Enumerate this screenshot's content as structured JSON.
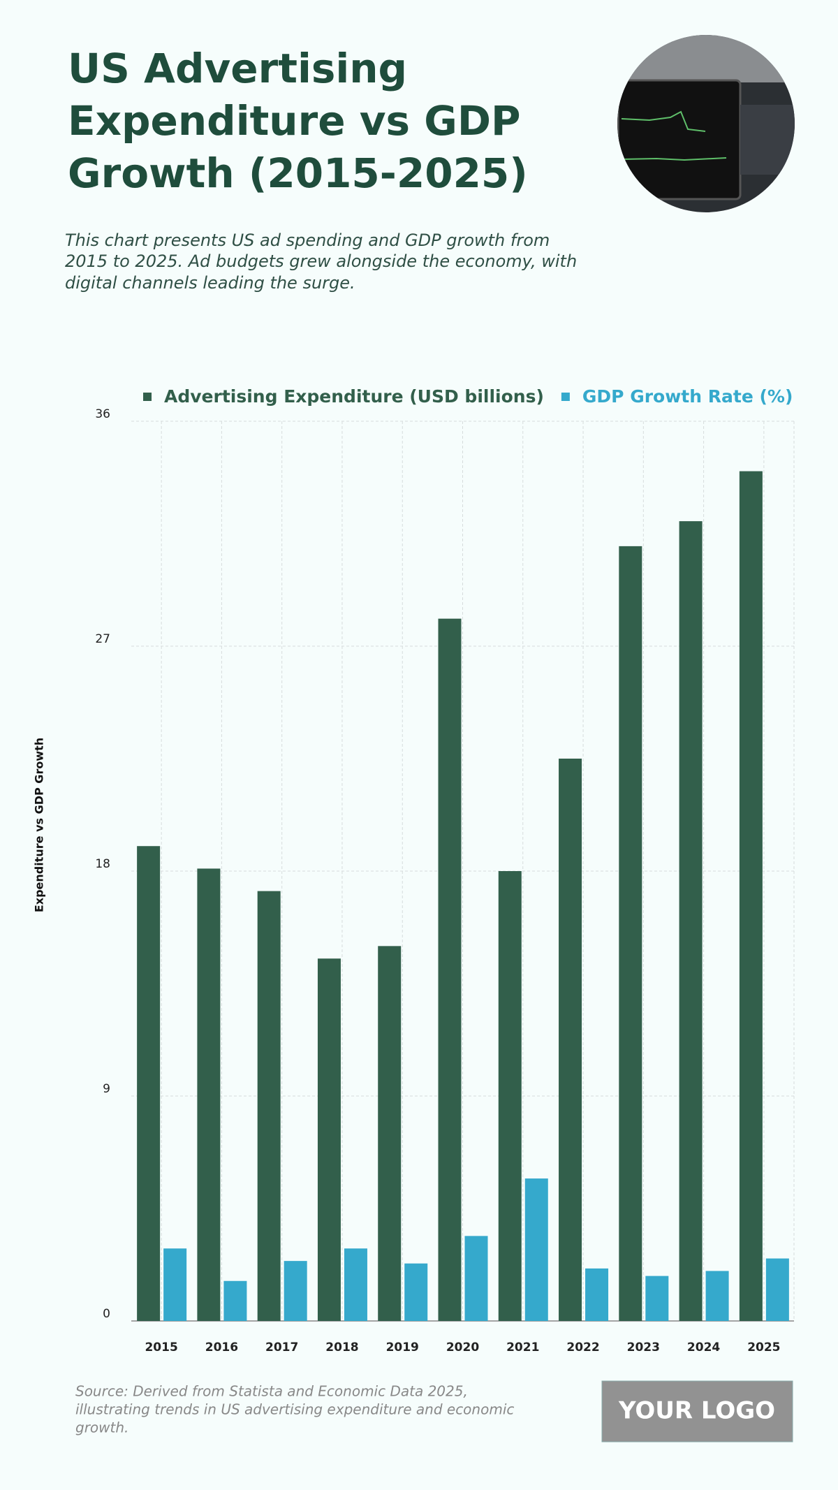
{
  "header": {
    "title": [
      "US Advertising",
      "Expenditure vs GDP",
      "Growth (2015-2025)"
    ],
    "subtitle": [
      "This chart presents US ad spending and GDP growth from",
      "2015 to 2025. Ad budgets grew alongside the economy, with",
      "digital channels leading the surge."
    ]
  },
  "chart_data": {
    "type": "bar",
    "y_label": "Expenditure vs GDP Growth",
    "categories": [
      "2015",
      "2016",
      "2017",
      "2018",
      "2019",
      "2020",
      "2021",
      "2022",
      "2023",
      "2024",
      "2025"
    ],
    "series": [
      {
        "name": "Advertising Expenditure (USD billions)",
        "color": "#325f4b",
        "values": [
          19.0,
          18.1,
          17.2,
          14.5,
          15.0,
          28.1,
          18.0,
          22.5,
          31.0,
          32.0,
          34.0
        ]
      },
      {
        "name": "GDP Growth Rate (%)",
        "color": "#35a9cc",
        "values": [
          2.9,
          1.6,
          2.4,
          2.9,
          2.3,
          3.4,
          5.7,
          2.1,
          1.8,
          2.0,
          2.5
        ]
      }
    ],
    "ylim": [
      0,
      36
    ],
    "yticks": [
      0,
      9,
      18,
      27,
      36
    ],
    "grid": true
  },
  "footer": {
    "source": [
      "Source: Derived from Statista and Economic Data 2025,",
      "illustrating trends in US advertising expenditure and economic",
      "growth."
    ],
    "logo": "YOUR LOGO"
  }
}
